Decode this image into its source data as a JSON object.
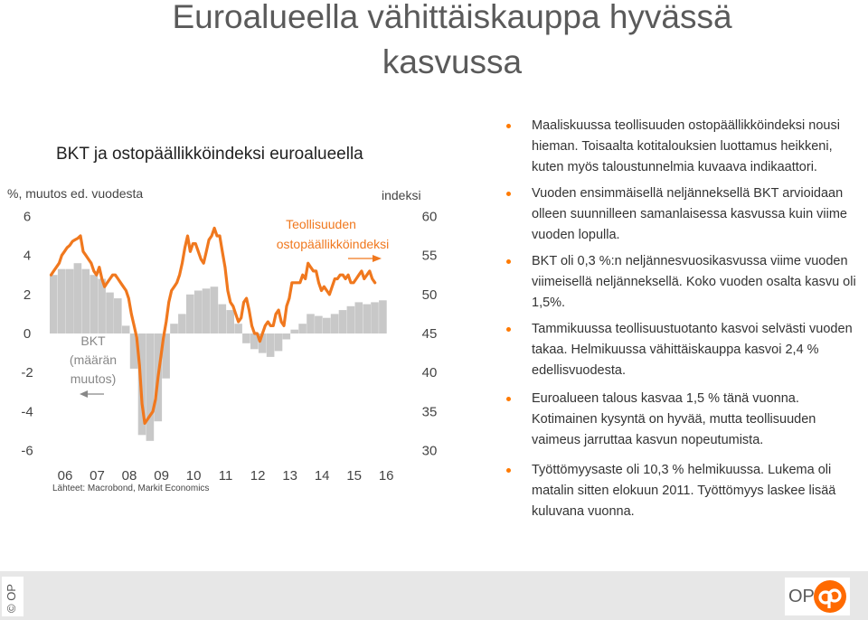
{
  "slide": {
    "title": "Euroalueella vähittäiskauppa hyvässä kasvussa",
    "chart_heading": "BKT ja ostopäällikköindeksi euroalueella",
    "left_axis_caption": "%, muutos ed. vuodesta",
    "right_axis_caption": "indeksi",
    "pmi_label": "Teollisuuden ostopäällikköindeksi",
    "gdp_label": "BKT (määrän muutos)",
    "source": "Lähteet: Macrobond, Markit Economics",
    "footer_copyright": "© OP",
    "logo_text": "OP"
  },
  "colors": {
    "pmi_line": "#f0781e",
    "gdp_bars": "#c8c8c8",
    "bullet": "#ff7a00",
    "footer": "#e7e7e7",
    "logo": "#ff6a00"
  },
  "bullets": [
    "Maaliskuussa teollisuuden ostopäällikköindeksi nousi hieman. Toisaalta kotitalouksien luottamus heikkeni, kuten myös taloustunnelmia kuvaava indikaattori.",
    "Vuoden ensimmäisellä neljänneksellä BKT arvioidaan olleen suunnilleen samanlaisessa kasvussa kuin viime vuoden lopulla.",
    "BKT oli 0,3 %:n neljännesvuosikasvussa viime vuoden viimeisellä neljänneksellä. Koko vuoden osalta kasvu oli 1,5%.",
    "Tammikuussa teollisuustuotanto kasvoi selvästi vuoden takaa. Helmikuussa vähittäiskauppa kasvoi 2,4 % edellisvuodesta.",
    "Euroalueen talous kasvaa 1,5 % tänä vuonna. Kotimainen kysyntä on hyvää, mutta teollisuuden vaimeus jarruttaa kasvun nopeutumista.",
    "Työttömyysaste oli 10,3 % helmikuussa. Lukema oli matalin sitten elokuun 2011. Työttömyys laskee lisää kuluvana vuonna."
  ],
  "chart_data": {
    "type": "bar+line",
    "title": "BKT ja ostopäällikköindeksi euroalueella",
    "x_tick_labels": [
      "06",
      "07",
      "08",
      "09",
      "10",
      "11",
      "12",
      "13",
      "14",
      "15",
      "16"
    ],
    "left_axis": {
      "label": "%, muutos ed. vuodesta",
      "ylim": [
        -6,
        6
      ],
      "ticks": [
        6,
        4,
        2,
        0,
        -2,
        -4,
        -6
      ]
    },
    "right_axis": {
      "label": "indeksi",
      "ylim": [
        30,
        60
      ],
      "ticks": [
        60,
        55,
        50,
        45,
        40,
        35,
        30
      ]
    },
    "gdp_quarterly": {
      "name": "BKT (määrän muutos)",
      "axis": "left",
      "start_year": 2006,
      "values": [
        3.0,
        3.3,
        3.3,
        3.6,
        3.3,
        3.0,
        2.8,
        2.1,
        1.8,
        0.4,
        -1.8,
        -5.2,
        -5.5,
        -4.5,
        -2.3,
        0.5,
        1.0,
        2.0,
        2.2,
        2.3,
        2.4,
        1.5,
        1.2,
        0.5,
        -0.5,
        -0.8,
        -1.0,
        -1.2,
        -0.9,
        -0.3,
        0.2,
        0.5,
        1.0,
        0.9,
        0.8,
        1.0,
        1.2,
        1.4,
        1.6,
        1.5,
        1.6,
        1.7
      ]
    },
    "pmi_monthly": {
      "name": "Teollisuuden ostopäällikköindeksi",
      "axis": "right",
      "start_year": 2006,
      "values": [
        52.5,
        53.0,
        53.5,
        54.0,
        55.0,
        55.5,
        56.0,
        56.3,
        56.8,
        57.0,
        57.2,
        57.5,
        55.5,
        55.0,
        54.5,
        54.0,
        53.0,
        52.5,
        53.5,
        52.0,
        51.0,
        51.5,
        52.0,
        52.5,
        52.5,
        52.0,
        51.5,
        51.0,
        50.5,
        49.5,
        47.5,
        46.0,
        44.5,
        41.0,
        36.0,
        33.5,
        34.0,
        34.5,
        35.0,
        36.5,
        39.5,
        42.0,
        44.5,
        46.5,
        49.0,
        50.5,
        51.0,
        51.5,
        52.5,
        54.0,
        56.0,
        57.5,
        55.5,
        56.5,
        56.5,
        55.5,
        54.5,
        54.0,
        55.5,
        57.0,
        57.5,
        58.5,
        57.5,
        57.5,
        55.5,
        53.5,
        50.5,
        49.0,
        48.5,
        47.5,
        46.5,
        47.0,
        49.0,
        49.5,
        48.0,
        46.0,
        45.0,
        45.0,
        44.0,
        45.0,
        46.0,
        46.5,
        46.0,
        46.0,
        47.5,
        48.0,
        46.5,
        46.0,
        48.5,
        49.5,
        51.5,
        51.5,
        51.5,
        51.5,
        52.5,
        52.0,
        54.0,
        53.5,
        53.0,
        53.0,
        51.5,
        50.5,
        51.0,
        50.5,
        50.0,
        51.0,
        52.0,
        52.0,
        52.5,
        52.5,
        52.0,
        52.5,
        51.5,
        51.5,
        52.0,
        52.5,
        53.0,
        52.0,
        52.5,
        53.0,
        52.0,
        51.5
      ]
    }
  }
}
